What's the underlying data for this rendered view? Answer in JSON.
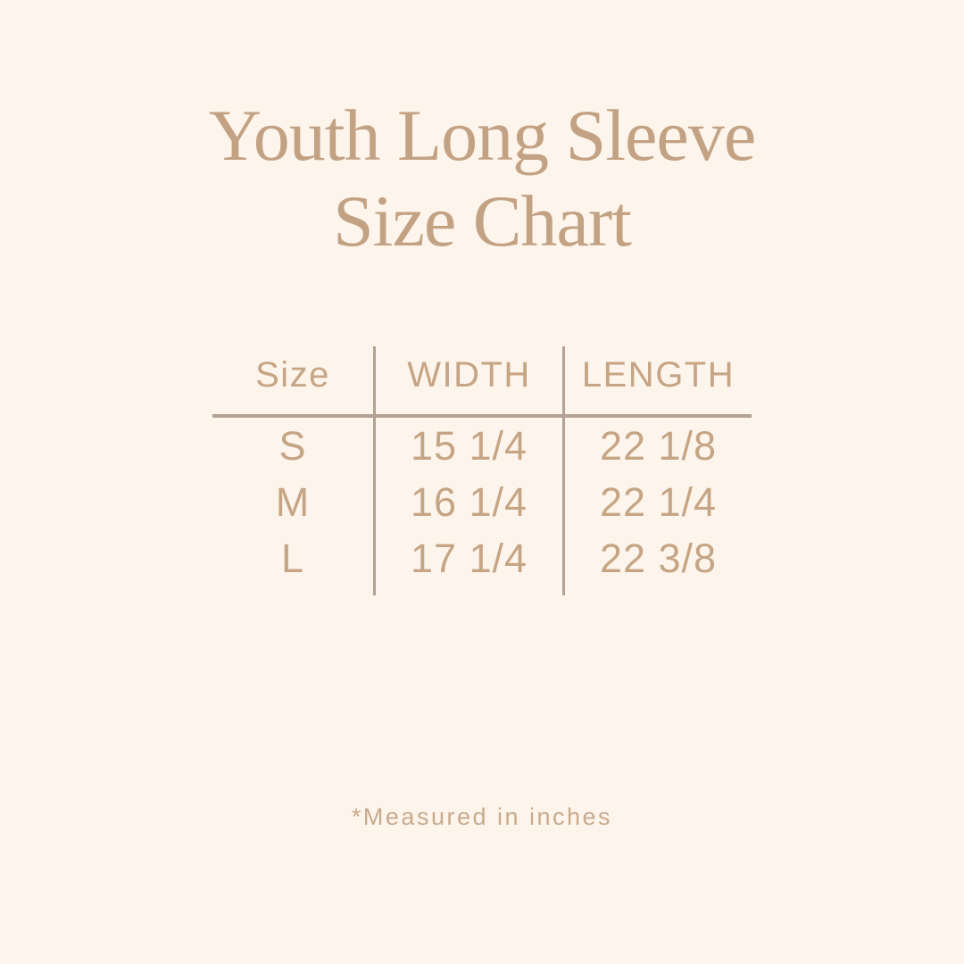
{
  "page": {
    "background_color": "#fdf5ec",
    "title_color": "#c3a284",
    "table_text_color": "#c6a585",
    "line_color": "#b3a294"
  },
  "title": {
    "line1": "Youth Long Sleeve",
    "line2": "Size Chart"
  },
  "chart_data": {
    "type": "table",
    "title": "Youth Long Sleeve Size Chart",
    "columns": [
      "Size",
      "WIDTH",
      "LENGTH"
    ],
    "rows": [
      {
        "size": "S",
        "width": "15 1/4",
        "length": "22 1/8"
      },
      {
        "size": "M",
        "width": "16 1/4",
        "length": "22 1/4"
      },
      {
        "size": "L",
        "width": "17 1/4",
        "length": "22 3/8"
      }
    ],
    "units": "inches"
  },
  "footnote": "*Measured in inches"
}
